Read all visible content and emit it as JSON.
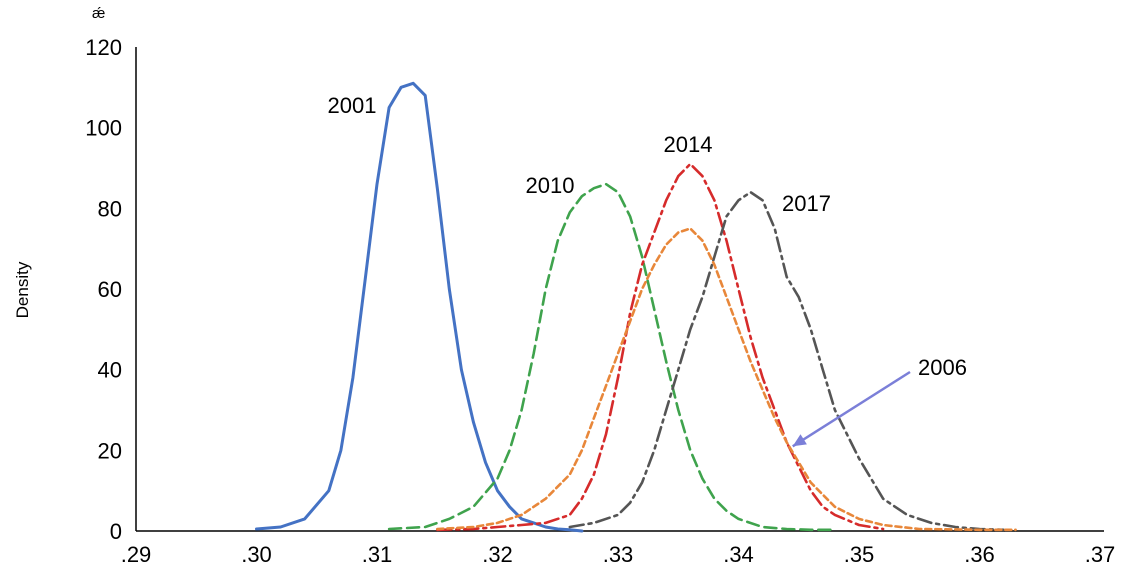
{
  "chart_data": {
    "type": "line",
    "title": "",
    "xlabel": "",
    "ylabel": "Density",
    "xlim": [
      0.29,
      0.37
    ],
    "ylim": [
      0,
      120
    ],
    "x_ticks": [
      ".29",
      ".30",
      ".31",
      ".32",
      ".33",
      ".34",
      ".35",
      ".36",
      ".37"
    ],
    "y_ticks": [
      "0",
      "20",
      "40",
      "60",
      "80",
      "100",
      "120"
    ],
    "grid": false,
    "legend": "none",
    "corner_mark": "ǽ",
    "series": [
      {
        "name": "2001",
        "color": "#4472c4",
        "style": "solid",
        "x": [
          0.3,
          0.302,
          0.304,
          0.306,
          0.307,
          0.308,
          0.309,
          0.31,
          0.311,
          0.312,
          0.313,
          0.314,
          0.315,
          0.316,
          0.317,
          0.318,
          0.319,
          0.32,
          0.321,
          0.322,
          0.323,
          0.324,
          0.325,
          0.326,
          0.327
        ],
        "y": [
          0.5,
          1,
          3,
          10,
          20,
          38,
          62,
          86,
          105,
          110,
          111,
          108,
          85,
          60,
          40,
          27,
          17,
          10,
          6,
          3,
          2,
          1,
          0.5,
          0.3,
          0
        ]
      },
      {
        "name": "2010",
        "color": "#3fa34d",
        "style": "dashed",
        "x": [
          0.311,
          0.314,
          0.316,
          0.318,
          0.32,
          0.321,
          0.322,
          0.323,
          0.324,
          0.325,
          0.326,
          0.327,
          0.328,
          0.329,
          0.33,
          0.331,
          0.332,
          0.333,
          0.334,
          0.335,
          0.336,
          0.337,
          0.338,
          0.339,
          0.34,
          0.342,
          0.344,
          0.346,
          0.348
        ],
        "y": [
          0.5,
          1,
          3,
          6,
          13,
          20,
          30,
          44,
          60,
          72,
          79,
          83,
          85,
          86,
          84,
          78,
          68,
          55,
          42,
          30,
          20,
          13,
          8,
          5,
          3,
          1,
          0.5,
          0.3,
          0.3
        ]
      },
      {
        "name": "2014",
        "color": "#d62b2b",
        "style": "dashdot",
        "x": [
          0.315,
          0.318,
          0.32,
          0.322,
          0.324,
          0.326,
          0.327,
          0.328,
          0.329,
          0.33,
          0.331,
          0.332,
          0.333,
          0.334,
          0.335,
          0.336,
          0.337,
          0.338,
          0.339,
          0.34,
          0.341,
          0.342,
          0.343,
          0.344,
          0.345,
          0.346,
          0.347,
          0.348,
          0.35,
          0.352
        ],
        "y": [
          0.3,
          0.5,
          1,
          1.5,
          2,
          4,
          8,
          14,
          24,
          38,
          54,
          66,
          74,
          82,
          88,
          91,
          88,
          82,
          72,
          60,
          48,
          38,
          30,
          22,
          16,
          10,
          6,
          4,
          1.5,
          0.5
        ]
      },
      {
        "name": "2017",
        "color": "#555555",
        "style": "dashdot",
        "x": [
          0.326,
          0.328,
          0.33,
          0.331,
          0.332,
          0.333,
          0.334,
          0.335,
          0.336,
          0.337,
          0.338,
          0.339,
          0.34,
          0.341,
          0.342,
          0.343,
          0.344,
          0.345,
          0.346,
          0.347,
          0.348,
          0.35,
          0.352,
          0.354,
          0.356,
          0.358,
          0.36,
          0.362
        ],
        "y": [
          1,
          2,
          4,
          7,
          12,
          20,
          30,
          40,
          50,
          58,
          68,
          78,
          82,
          84,
          82,
          75,
          63,
          58,
          50,
          40,
          30,
          18,
          8,
          4,
          2,
          1,
          0.5,
          0.3
        ]
      },
      {
        "name": "2006",
        "color": "#e8873a",
        "style": "dotted",
        "x": [
          0.315,
          0.318,
          0.32,
          0.322,
          0.324,
          0.326,
          0.327,
          0.328,
          0.329,
          0.33,
          0.331,
          0.332,
          0.333,
          0.334,
          0.335,
          0.336,
          0.337,
          0.338,
          0.339,
          0.34,
          0.341,
          0.342,
          0.343,
          0.344,
          0.345,
          0.346,
          0.348,
          0.35,
          0.352,
          0.355,
          0.36,
          0.363
        ],
        "y": [
          0.5,
          1,
          2,
          4,
          8,
          14,
          20,
          28,
          36,
          44,
          52,
          60,
          66,
          71,
          74,
          75,
          72,
          66,
          58,
          50,
          42,
          35,
          28,
          22,
          17,
          12,
          6,
          3,
          1.5,
          0.5,
          0.3,
          0.3
        ]
      }
    ],
    "annotations": [
      {
        "text": "2001",
        "series": "2001"
      },
      {
        "text": "2010",
        "series": "2010"
      },
      {
        "text": "2014",
        "series": "2014"
      },
      {
        "text": "2017",
        "series": "2017"
      },
      {
        "text": "2006",
        "series": "2006",
        "arrow_to": {
          "x": 0.3445,
          "y": 21
        },
        "arrow_color": "#7b7fd8"
      }
    ]
  }
}
